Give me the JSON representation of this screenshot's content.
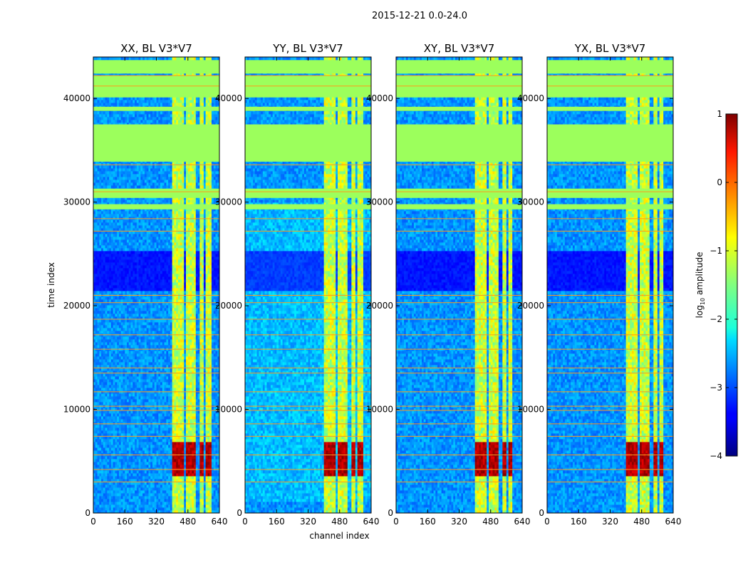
{
  "figure": {
    "suptitle": "2015-12-21 0.0-24.0"
  },
  "chart_data": [
    {
      "type": "heatmap",
      "title": "XX, BL V3*V7",
      "xlabel": "",
      "ylabel": "time index",
      "xlim": [
        0,
        640
      ],
      "ylim": [
        0,
        44000
      ],
      "xticks": [
        "0",
        "160",
        "320",
        "480",
        "640"
      ],
      "yticks": [
        "0",
        "10000",
        "20000",
        "30000",
        "40000"
      ],
      "hot_channels": [
        [
          403,
          460
        ],
        [
          470,
          520
        ],
        [
          545,
          560
        ],
        [
          575,
          590
        ]
      ],
      "extra_channels": [
        [
          590,
          600
        ]
      ]
    },
    {
      "type": "heatmap",
      "title": "YY, BL V3*V7",
      "xlabel": "channel index",
      "ylabel": "",
      "xlim": [
        0,
        640
      ],
      "ylim": [
        0,
        44000
      ],
      "xticks": [
        "0",
        "160",
        "320",
        "480",
        "640"
      ],
      "yticks": [
        "0",
        "10000",
        "20000",
        "30000",
        "40000"
      ],
      "hot_channels": [
        [
          403,
          460
        ],
        [
          470,
          520
        ],
        [
          545,
          560
        ],
        [
          575,
          590
        ]
      ],
      "extra_channels": [
        [
          590,
          600
        ]
      ]
    },
    {
      "type": "heatmap",
      "title": "XY, BL V3*V7",
      "xlabel": "",
      "ylabel": "",
      "xlim": [
        0,
        640
      ],
      "ylim": [
        0,
        44000
      ],
      "xticks": [
        "0",
        "160",
        "320",
        "480",
        "640"
      ],
      "yticks": [
        "0",
        "10000",
        "20000",
        "30000",
        "40000"
      ],
      "hot_channels": [
        [
          403,
          460
        ],
        [
          470,
          520
        ],
        [
          545,
          560
        ],
        [
          575,
          590
        ]
      ],
      "extra_channels": []
    },
    {
      "type": "heatmap",
      "title": "YX, BL V3*V7",
      "xlabel": "",
      "ylabel": "",
      "xlim": [
        0,
        640
      ],
      "ylim": [
        0,
        44000
      ],
      "xticks": [
        "0",
        "160",
        "320",
        "480",
        "640"
      ],
      "yticks": [
        "0",
        "10000",
        "20000",
        "30000",
        "40000"
      ],
      "hot_channels": [
        [
          403,
          460
        ],
        [
          470,
          520
        ],
        [
          545,
          560
        ],
        [
          575,
          590
        ]
      ],
      "extra_channels": []
    }
  ],
  "colorbar": {
    "label_prefix": "log",
    "label_sub": "10",
    "label_suffix": " amplitude",
    "ticks": [
      "1",
      "0",
      "−1",
      "−2",
      "−3",
      "−4"
    ],
    "range": [
      -4,
      1
    ],
    "colormap": "jet"
  },
  "features": {
    "flagged_bands": [
      [
        33900,
        37500
      ],
      [
        40100,
        42200
      ],
      [
        42400,
        43700
      ],
      [
        29300,
        29800
      ],
      [
        30400,
        31300
      ],
      [
        38800,
        39200
      ]
    ],
    "quiet_band": [
      21500,
      25200
    ],
    "strong_rfi_band": [
      3500,
      6800
    ],
    "orange_lines": [
      3000,
      4200,
      5600,
      7400,
      8600,
      9900,
      10300,
      11700,
      13500,
      14000,
      15800,
      17200,
      18700,
      20300,
      21000,
      27200,
      28400,
      31000,
      33600,
      41200,
      42200
    ]
  }
}
